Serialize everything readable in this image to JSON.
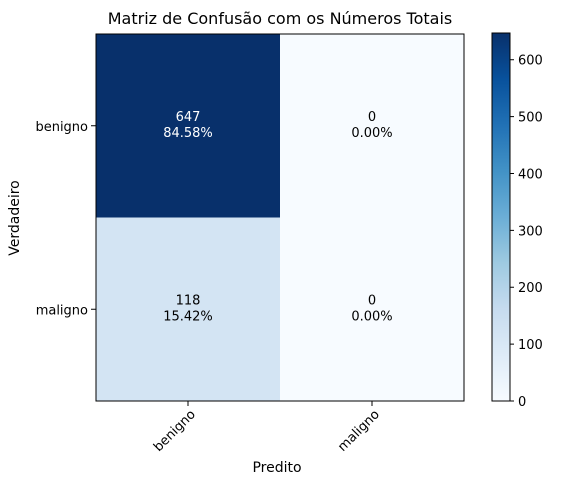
{
  "chart_data": {
    "type": "heatmap",
    "title": "Matriz de Confusão com os Números Totais",
    "xlabel": "Predito",
    "ylabel": "Verdadeiro",
    "x_categories": [
      "benigno",
      "maligno"
    ],
    "y_categories": [
      "benigno",
      "maligno"
    ],
    "values": [
      [
        647,
        0
      ],
      [
        118,
        0
      ]
    ],
    "cell_labels": [
      [
        {
          "count": "647",
          "percent": "84.58%"
        },
        {
          "count": "0",
          "percent": "0.00%"
        }
      ],
      [
        {
          "count": "118",
          "percent": "15.42%"
        },
        {
          "count": "0",
          "percent": "0.00%"
        }
      ]
    ],
    "colorbar": {
      "colormap": "Blues",
      "range": [
        0,
        647
      ],
      "ticks": [
        0,
        100,
        200,
        300,
        400,
        500,
        600
      ],
      "tick_labels": [
        "0",
        "100",
        "200",
        "300",
        "400",
        "500",
        "600"
      ]
    },
    "grid": false
  }
}
